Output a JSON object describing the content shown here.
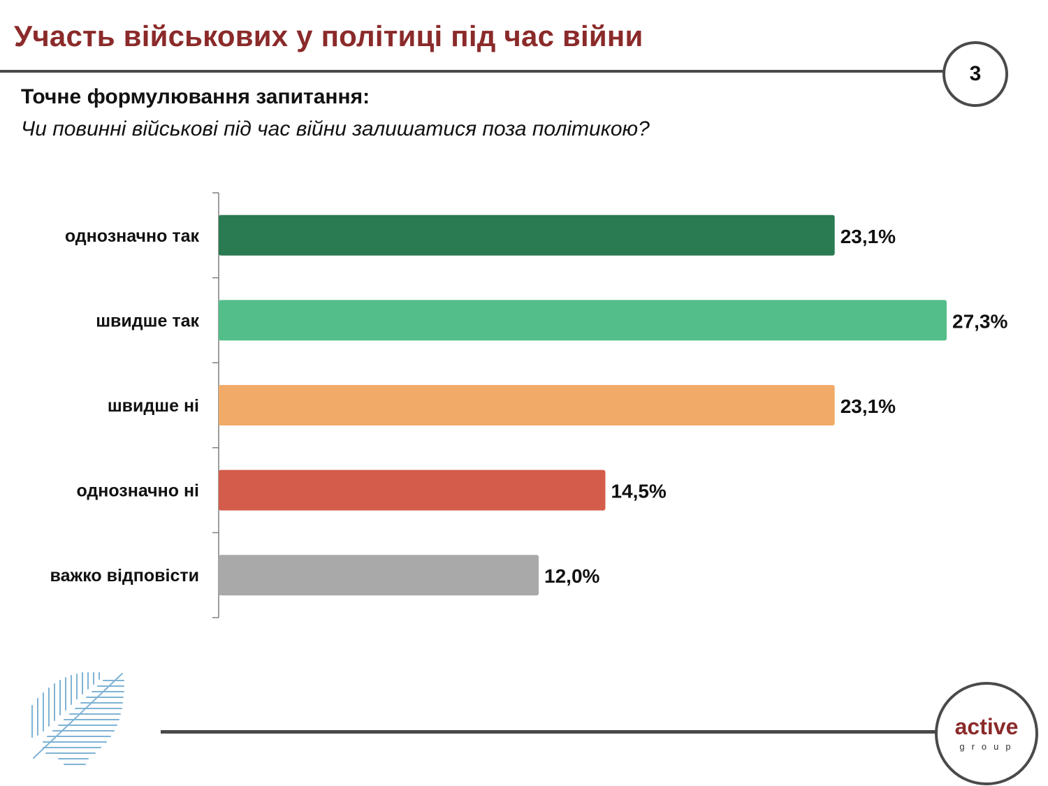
{
  "header": {
    "title": "Участь військових у політиці під час війни",
    "page_number": "3"
  },
  "question": {
    "heading": "Точне формулювання запитання:",
    "text": "Чи повинні військові під час війни залишатися поза політикою?"
  },
  "logo": {
    "main": "active",
    "sub": "group"
  },
  "colors": {
    "title": "#8b2a2a",
    "rule": "#4a4a4a",
    "leaf": "#7fb3d5"
  },
  "chart_data": {
    "type": "bar",
    "orientation": "horizontal",
    "categories": [
      "однозначно так",
      "швидше так",
      "швидше ні",
      "однозначно ні",
      "важко відповісти"
    ],
    "values": [
      23.1,
      27.3,
      23.1,
      14.5,
      12.0
    ],
    "value_labels": [
      "23,1%",
      "27,3%",
      "23,1%",
      "14,5%",
      "12,0%"
    ],
    "colors": [
      "#2a7a52",
      "#53be89",
      "#f2aa68",
      "#d45c4a",
      "#a9a9a9"
    ],
    "unit": "%",
    "grid": false,
    "legend": "none"
  }
}
